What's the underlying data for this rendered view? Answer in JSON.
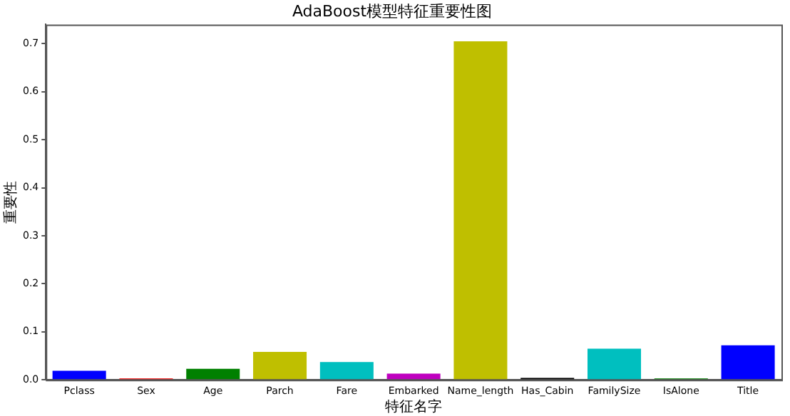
{
  "chart_data": {
    "type": "bar",
    "title": "AdaBoost模型特征重要性图",
    "xlabel": "特征名字",
    "ylabel": "重要性",
    "categories": [
      "Pclass",
      "Sex",
      "Age",
      "Parch",
      "Fare",
      "Embarked",
      "Name_length",
      "Has_Cabin",
      "FamilySize",
      "IsAlone",
      "Title"
    ],
    "values": [
      0.019,
      0.003,
      0.023,
      0.058,
      0.037,
      0.013,
      0.705,
      0.004,
      0.065,
      0.003,
      0.072
    ],
    "colors": [
      "#0000ff",
      "#ff0000",
      "#008000",
      "#bfbf00",
      "#00bfbf",
      "#bf00bf",
      "#bfbf00",
      "#000000",
      "#00bfbf",
      "#008000",
      "#0000ff"
    ],
    "ylim": [
      0,
      0.74
    ],
    "yticks": [
      {
        "value": 0,
        "label": "0.0"
      },
      0.1,
      0.2,
      0.3,
      0.4,
      0.5,
      0.6,
      0.7
    ],
    "grid": false,
    "legend": false
  }
}
